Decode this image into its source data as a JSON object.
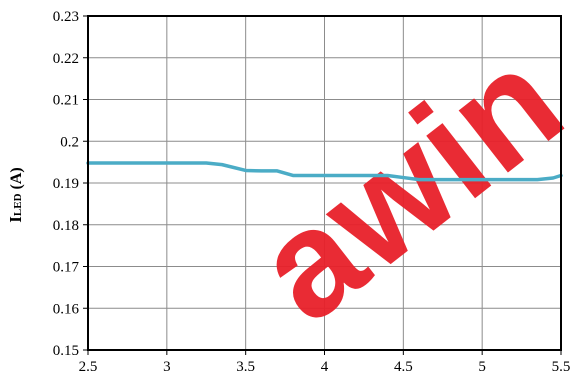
{
  "chart_data": {
    "type": "line",
    "title": "",
    "xlabel": "",
    "ylabel": "ILED (A)",
    "ylabel_main": "I",
    "ylabel_sub": "LED",
    "ylabel_unit": " (A)",
    "xlim": [
      2.5,
      5.5
    ],
    "ylim": [
      0.15,
      0.23
    ],
    "x_ticks": [
      "2.5",
      "3",
      "3.5",
      "4",
      "4.5",
      "5",
      "5.5"
    ],
    "y_ticks": [
      "0.15",
      "0.16",
      "0.17",
      "0.18",
      "0.19",
      "0.2",
      "0.21",
      "0.22",
      "0.23"
    ],
    "grid": true,
    "legend": "none",
    "series": [
      {
        "color": "#4bacc6",
        "x": [
          2.5,
          3.0,
          3.25,
          3.35,
          3.5,
          3.6,
          3.7,
          3.8,
          3.9,
          4.0,
          4.2,
          4.4,
          4.5,
          4.6,
          4.8,
          5.0,
          5.2,
          5.35,
          5.45,
          5.5
        ],
        "y": [
          0.1948,
          0.1948,
          0.1948,
          0.1944,
          0.193,
          0.1929,
          0.1929,
          0.1918,
          0.1918,
          0.1918,
          0.1918,
          0.1918,
          0.1913,
          0.1908,
          0.1908,
          0.1908,
          0.1908,
          0.1908,
          0.1912,
          0.1918
        ]
      }
    ]
  },
  "watermark": {
    "text": "awin",
    "color": "#e8202a"
  }
}
